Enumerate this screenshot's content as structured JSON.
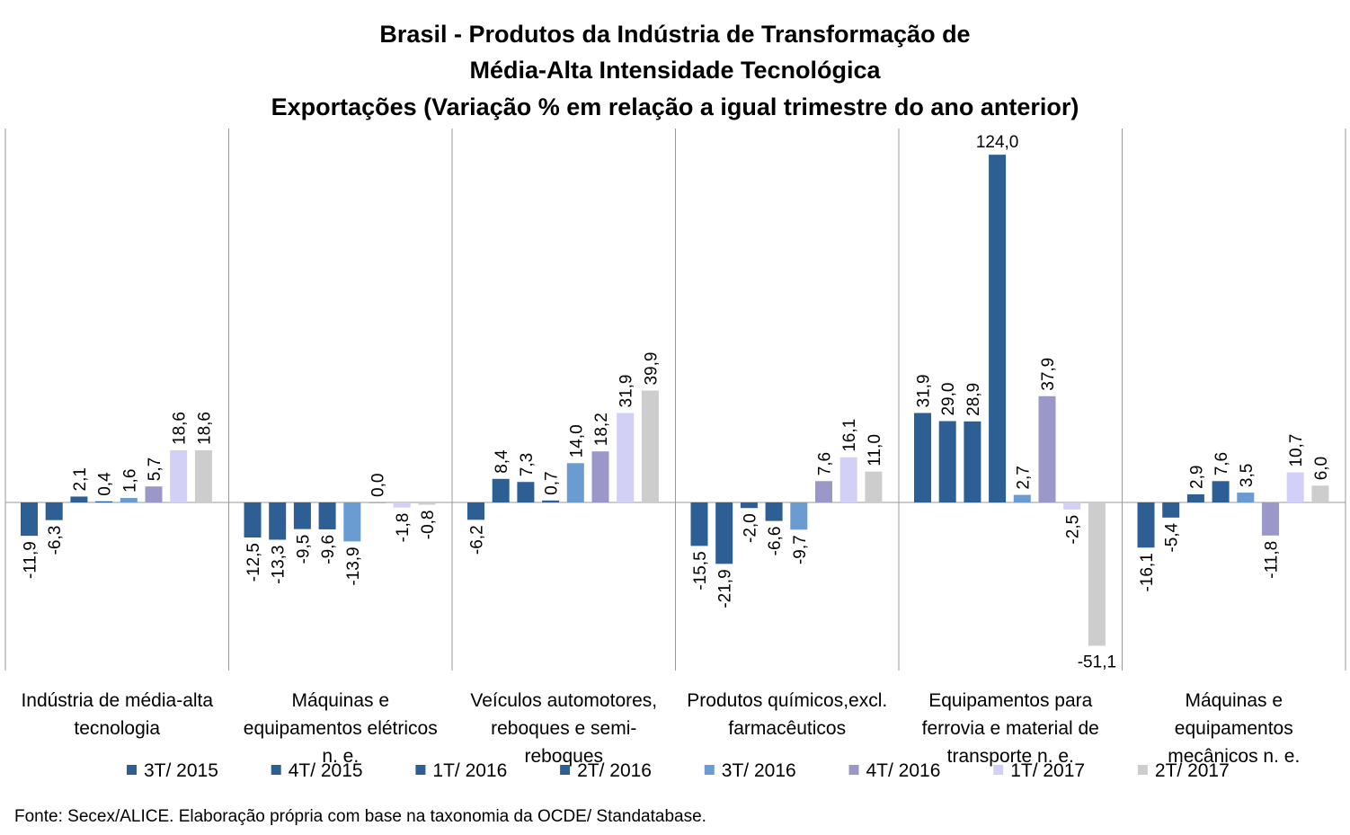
{
  "chart_data": {
    "type": "bar",
    "title": [
      "Brasil - Produtos da Indústria de Transformação de",
      "Média-Alta Intensidade Tecnológica",
      "Exportações (Variação % em relação a igual trimestre do ano anterior)"
    ],
    "categories": [
      [
        "Indústria de média-alta",
        "tecnologia"
      ],
      [
        "Máquinas e",
        "equipamentos elétricos",
        "n. e."
      ],
      [
        "Veículos automotores,",
        "reboques e semi-",
        "reboques"
      ],
      [
        "Produtos químicos,excl.",
        "farmacêuticos"
      ],
      [
        "Equipamentos para",
        "ferrovia e material de",
        "transporte n. e."
      ],
      [
        "Máquinas e",
        "equipamentos",
        "mecânicos  n. e."
      ]
    ],
    "series": [
      {
        "name": "3T/ 2015",
        "color": "#2e5f94",
        "values": [
          -11.9,
          -12.5,
          -6.2,
          -15.5,
          31.9,
          -16.1
        ],
        "labels": [
          "-11,9",
          "-12,5",
          "-6,2",
          "-15,5",
          "31,9",
          "-16,1"
        ]
      },
      {
        "name": "4T/ 2015",
        "color": "#2e5f94",
        "values": [
          -6.3,
          -13.3,
          8.4,
          -21.9,
          29.0,
          -5.4
        ],
        "labels": [
          "-6,3",
          "-13,3",
          "8,4",
          "-21,9",
          "29,0",
          "-5,4"
        ]
      },
      {
        "name": "1T/ 2016",
        "color": "#2e5f94",
        "values": [
          2.1,
          -9.5,
          7.3,
          -2.0,
          28.9,
          2.9
        ],
        "labels": [
          "2,1",
          "-9,5",
          "7,3",
          "-2,0",
          "28,9",
          "2,9"
        ]
      },
      {
        "name": "2T/ 2016",
        "color": "#2e5f94",
        "values": [
          0.4,
          -9.6,
          0.7,
          -6.6,
          124.0,
          7.6
        ],
        "labels": [
          "0,4",
          "-9,6",
          "0,7",
          "-6,6",
          "124,0",
          "7,6"
        ]
      },
      {
        "name": "3T/ 2016",
        "color": "#6a9bd1",
        "values": [
          1.6,
          -13.9,
          14.0,
          -9.7,
          2.7,
          3.5
        ],
        "labels": [
          "1,6",
          "-13,9",
          "14,0",
          "-9,7",
          "2,7",
          "3,5"
        ]
      },
      {
        "name": "4T/ 2016",
        "color": "#9c97c9",
        "values": [
          5.7,
          0.0,
          18.2,
          7.6,
          37.9,
          -11.8
        ],
        "labels": [
          "5,7",
          "0,0",
          "18,2",
          "7,6",
          "37,9",
          "-11,8"
        ]
      },
      {
        "name": "1T/ 2017",
        "color": "#d2d0f6",
        "values": [
          18.6,
          -1.8,
          31.9,
          16.1,
          -2.5,
          10.7
        ],
        "labels": [
          "18,6",
          "-1,8",
          "31,9",
          "16,1",
          "-2,5",
          "10,7"
        ]
      },
      {
        "name": "2T/ 2017",
        "color": "#cdcdcd",
        "values": [
          18.6,
          -0.8,
          39.9,
          11.0,
          -51.1,
          6.0
        ],
        "labels": [
          "18,6",
          "-0,8",
          "39,9",
          "11,0",
          "-51,1",
          "6,0"
        ]
      }
    ],
    "ylim": [
      -56,
      130
    ],
    "grid": false,
    "legend_position": "bottom",
    "source": "Fonte: Secex/ALICE. Elaboração própria com base na taxonomia da OCDE/ Standatabase."
  }
}
